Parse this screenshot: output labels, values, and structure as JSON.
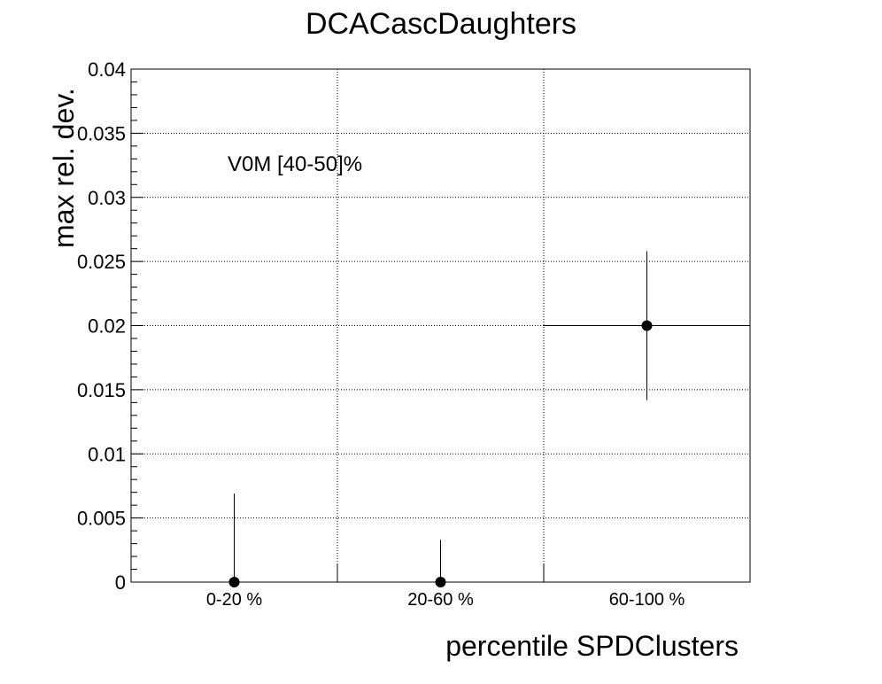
{
  "chart_data": {
    "type": "scatter",
    "title": "DCACascDaughters",
    "xlabel": "percentile SPDClusters",
    "ylabel": "max rel. dev.",
    "annotation": "V0M [40-50]%",
    "categories": [
      "0-20 %",
      "20-60 %",
      "60-100 %"
    ],
    "y_ticks": [
      "0",
      "0.005",
      "0.01",
      "0.015",
      "0.02",
      "0.025",
      "0.03",
      "0.035",
      "0.04"
    ],
    "ylim": [
      0,
      0.04
    ],
    "grid": true,
    "series": [
      {
        "values": [
          0,
          0,
          0.02
        ],
        "err_low": [
          0,
          0,
          0.0058
        ],
        "err_high": [
          0.0069,
          0.0033,
          0.0058
        ],
        "x_err_bar": [
          false,
          false,
          true
        ]
      }
    ],
    "colors": {
      "marker": "#000000",
      "grid": "#000000"
    }
  }
}
